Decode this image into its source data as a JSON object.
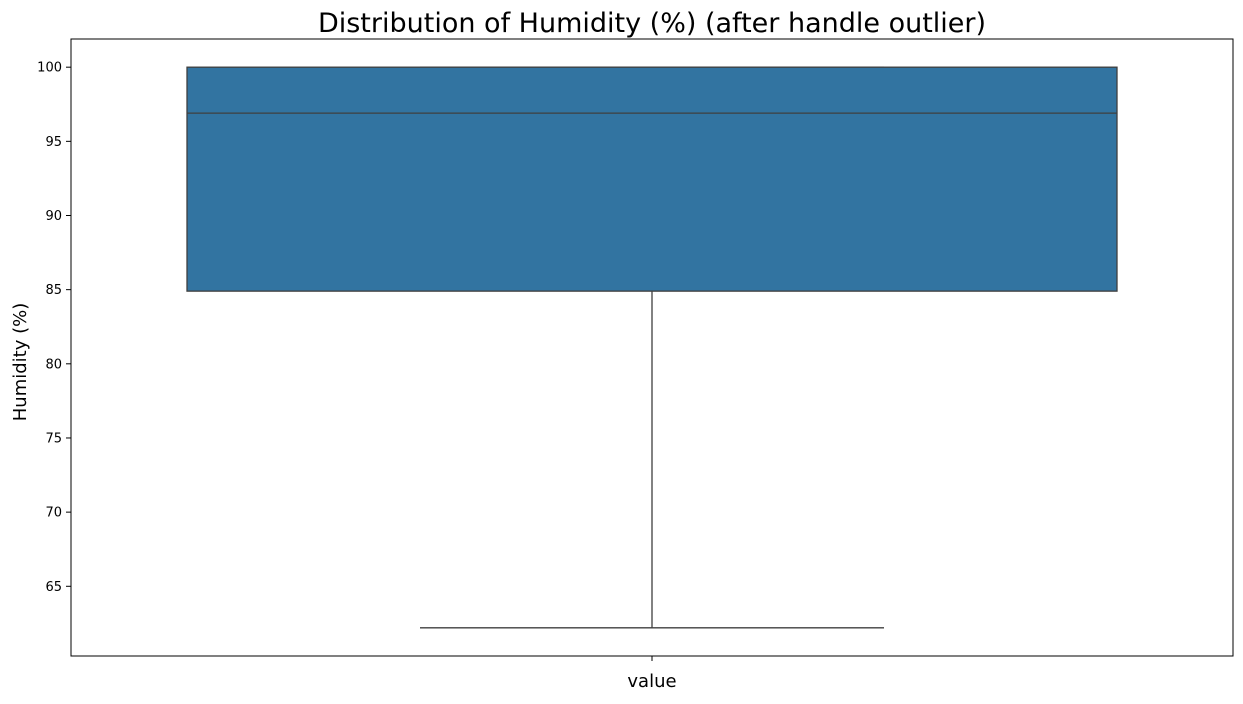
{
  "chart_data": {
    "type": "box",
    "title": "Distribution of Humidity (%) (after handle outlier)",
    "xlabel": "value",
    "ylabel": "Humidity (%)",
    "categories": [
      "value"
    ],
    "ylim": [
      60.3,
      101.9
    ],
    "yticks": [
      65,
      70,
      75,
      80,
      85,
      90,
      95,
      100
    ],
    "grid": false,
    "box": {
      "whisker_low": 62.2,
      "q1": 84.9,
      "median": 96.9,
      "q3": 100.0,
      "whisker_high": 100.0
    },
    "colors": {
      "box_fill": "#3274a1",
      "line": "#3f3f3f",
      "axes": "#000000"
    }
  }
}
